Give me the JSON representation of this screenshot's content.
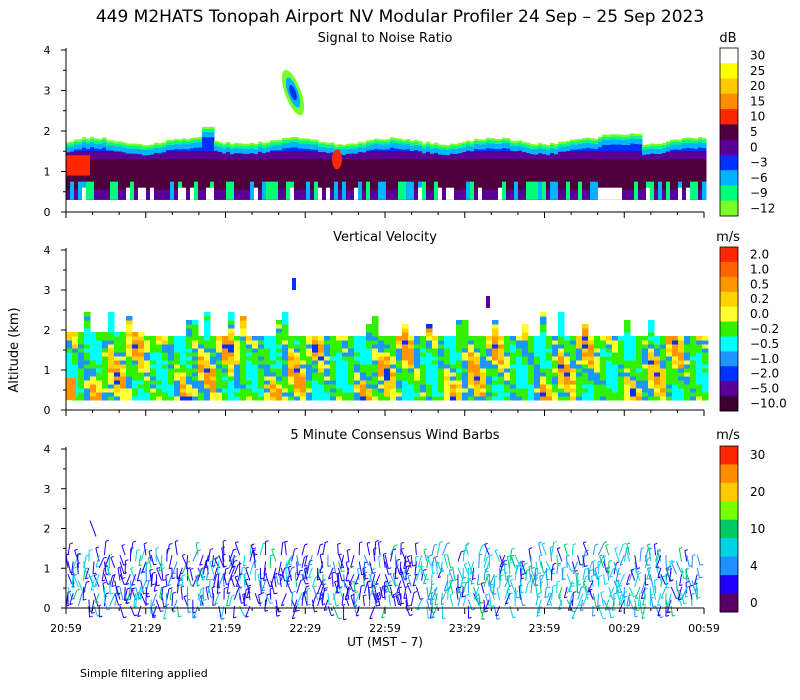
{
  "title": "449 M2HATS Tonopah Airport NV Modular Profiler 24 Sep – 25 Sep 2023",
  "footnote": "Simple filtering applied",
  "chart_data": {
    "type": "heatmap",
    "ylabel": "Altitude (km)",
    "xlabel": "UT  (MST – 7)",
    "x_ticks": [
      "20:59",
      "21:29",
      "21:59",
      "22:29",
      "22:59",
      "23:29",
      "23:59",
      "00:29",
      "00:59"
    ],
    "ylim": [
      0,
      4
    ],
    "y_ticks": [
      "0",
      "1",
      "2",
      "3",
      "4"
    ],
    "panels": [
      {
        "id": "snr",
        "title": "Signal to Noise Ratio",
        "unit": "dB",
        "colorbar": [
          {
            "label": "30",
            "color": "#ffffff"
          },
          {
            "label": "25",
            "color": "#ffff00"
          },
          {
            "label": "20",
            "color": "#ffc800"
          },
          {
            "label": "15",
            "color": "#ff8c00"
          },
          {
            "label": "10",
            "color": "#ff2800"
          },
          {
            "label": "5",
            "color": "#50003c"
          },
          {
            "label": "0",
            "color": "#5a0096"
          },
          {
            "label": "−3",
            "color": "#0032ff"
          },
          {
            "label": "−6",
            "color": "#00b4ff"
          },
          {
            "label": "−9",
            "color": "#00ff78"
          },
          {
            "label": "−12",
            "color": "#78ff28"
          }
        ]
      },
      {
        "id": "vv",
        "title": "Vertical Velocity",
        "unit": "m/s",
        "colorbar": [
          {
            "label": "2.0",
            "color": "#ff2800"
          },
          {
            "label": "1.0",
            "color": "#ff6400"
          },
          {
            "label": "0.5",
            "color": "#ff9600"
          },
          {
            "label": "0.2",
            "color": "#ffd200"
          },
          {
            "label": "0.0",
            "color": "#ffff32"
          },
          {
            "label": "−0.2",
            "color": "#32f000"
          },
          {
            "label": "−0.5",
            "color": "#00ffff"
          },
          {
            "label": "−1.0",
            "color": "#1e96ff"
          },
          {
            "label": "−2.0",
            "color": "#0032ff"
          },
          {
            "label": "−5.0",
            "color": "#5a0096"
          },
          {
            "label": "−10.0",
            "color": "#3c0032"
          }
        ]
      },
      {
        "id": "wind",
        "title": "5 Minute Consensus Wind Barbs",
        "unit": "m/s",
        "colorbar": [
          {
            "label": "30",
            "color": "#ff2800"
          },
          {
            "label": "",
            "color": "#ff8c00"
          },
          {
            "label": "20",
            "color": "#ffc800"
          },
          {
            "label": "",
            "color": "#78ff00"
          },
          {
            "label": "10",
            "color": "#00c864"
          },
          {
            "label": "",
            "color": "#00d2e6"
          },
          {
            "label": "4",
            "color": "#1e90ff"
          },
          {
            "label": "",
            "color": "#1e00ff"
          },
          {
            "label": "0",
            "color": "#5a0064"
          }
        ]
      }
    ]
  }
}
